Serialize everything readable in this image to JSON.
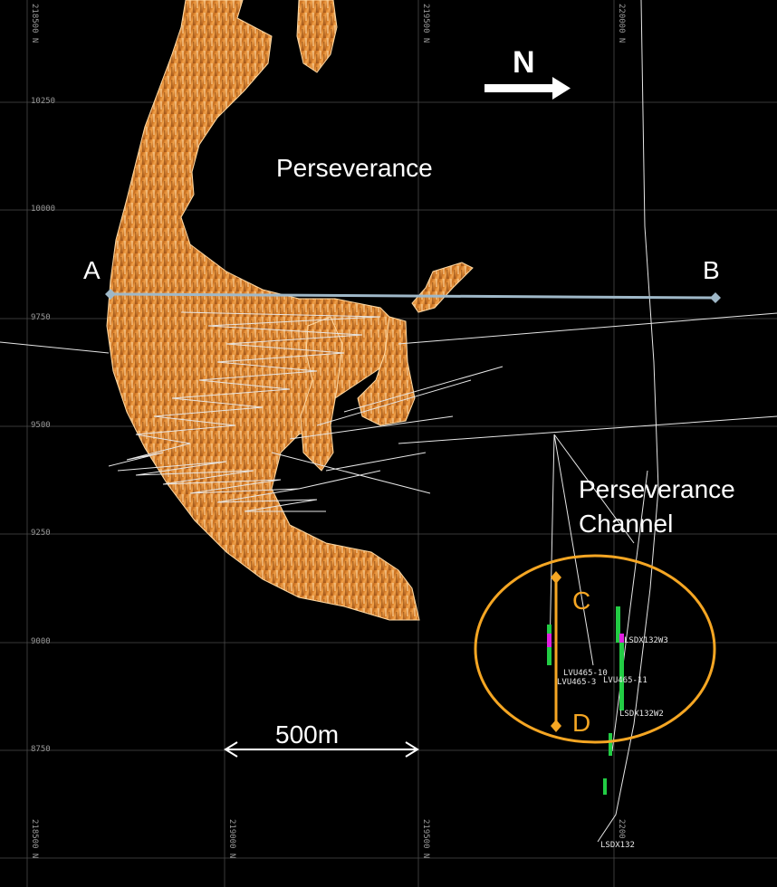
{
  "map": {
    "labels": {
      "deposit": "Perseverance",
      "channel_line1": "Perseverance",
      "channel_line2": "Channel"
    },
    "north_arrow": {
      "letter": "N"
    },
    "scale_bar": {
      "label": "500m"
    },
    "section_points": {
      "a": "A",
      "b": "B",
      "c": "C",
      "d": "D"
    },
    "northing_ticks": [
      "10250",
      "10000",
      "9750",
      "9500",
      "9250",
      "9000",
      "8750"
    ],
    "easting_ticks_top": [
      "218500 N",
      "219500 N",
      "220000 N"
    ],
    "easting_ticks_bottom": [
      "218500 N",
      "219000 N",
      "219500 N",
      "2200"
    ],
    "drillhole_labels": [
      "LSDX132W3",
      "LVU465-10",
      "LVU465-3",
      "LVU465-11",
      "LSDX132W2",
      "LSDX132"
    ],
    "colors": {
      "background": "#000000",
      "orebody": "#e0902e",
      "section_ab": "#9fb8c8",
      "section_cd": "#f5a623",
      "ellipse": "#f5a623",
      "grid": "#555555"
    }
  }
}
